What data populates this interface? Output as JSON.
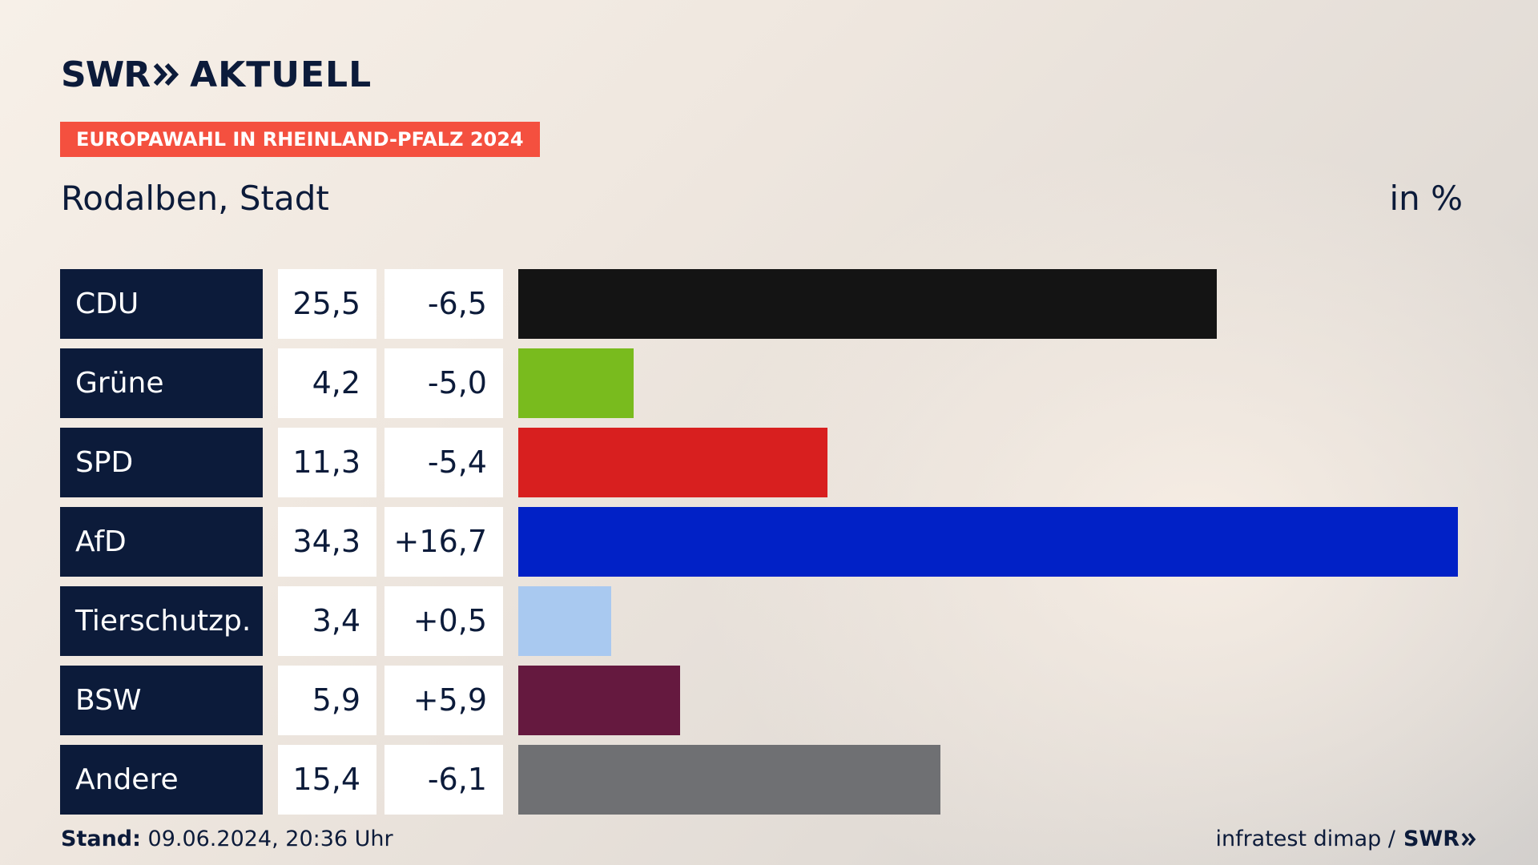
{
  "header": {
    "logo_swr": "SWR",
    "logo_aktuell": "AKTUELL",
    "badge": "EUROPAWAHL IN RHEINLAND-PFALZ 2024",
    "region": "Rodalben, Stadt",
    "unit": "in %"
  },
  "footer": {
    "stand_label": "Stand:",
    "stand_value": "09.06.2024, 20:36 Uhr",
    "source": "infratest dimap /",
    "source_logo": "SWR"
  },
  "chart_data": {
    "type": "bar",
    "orientation": "horizontal",
    "categories": [
      "CDU",
      "Grüne",
      "SPD",
      "AfD",
      "Tierschutzp.",
      "BSW",
      "Andere"
    ],
    "values": [
      25.5,
      4.2,
      11.3,
      34.3,
      3.4,
      5.9,
      15.4
    ],
    "value_labels": [
      "25,5",
      "4,2",
      "11,3",
      "34,3",
      "3,4",
      "5,9",
      "15,4"
    ],
    "diff_labels": [
      "-6,5",
      "-5,0",
      "-5,4",
      "+16,7",
      "+0,5",
      "+5,9",
      "-6,1"
    ],
    "colors": [
      "#141414",
      "#79bb1e",
      "#d81f1f",
      "#0121c6",
      "#a9c9f0",
      "#65193f",
      "#6f7073"
    ],
    "ylabel": "in %",
    "xlim": [
      0,
      34.3
    ]
  }
}
